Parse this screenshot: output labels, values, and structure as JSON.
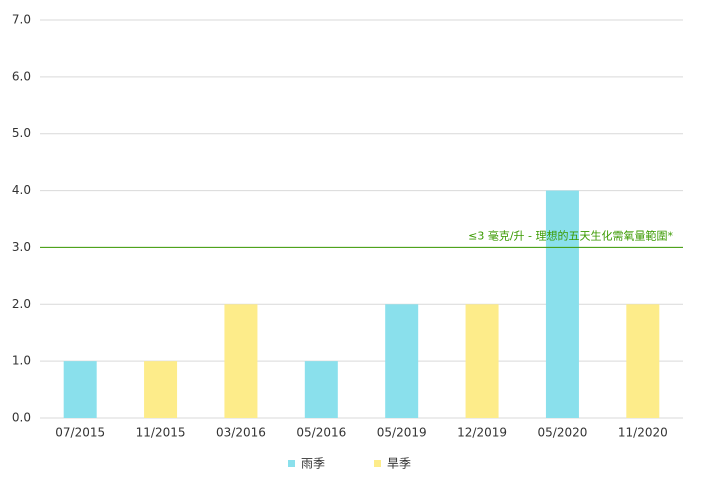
{
  "chart_data": {
    "type": "bar",
    "categories": [
      "07/2015",
      "11/2015",
      "03/2016",
      "05/2016",
      "05/2019",
      "12/2019",
      "05/2020",
      "11/2020"
    ],
    "series": [
      {
        "name": "雨季",
        "color": "#8ae0ec",
        "values": [
          1,
          null,
          null,
          1,
          2,
          null,
          4,
          null
        ]
      },
      {
        "name": "旱季",
        "color": "#fdec8a",
        "values": [
          null,
          1,
          2,
          null,
          null,
          2,
          null,
          2
        ]
      }
    ],
    "ylim": [
      0,
      7
    ],
    "yticks": [
      {
        "value": 0,
        "label": "0.0"
      },
      {
        "value": 1,
        "label": "1.0"
      },
      {
        "value": 2,
        "label": "2.0"
      },
      {
        "value": 3,
        "label": "3.0"
      },
      {
        "value": 4,
        "label": "4.0"
      },
      {
        "value": 5,
        "label": "5.0"
      },
      {
        "value": 6,
        "label": "6.0"
      },
      {
        "value": 7,
        "label": "7.0"
      }
    ],
    "grid": true,
    "reference_line": {
      "value": 3,
      "label": "≤3 毫克/升 - 理想的五天生化需氧量範圍*",
      "color": "#3a9a00"
    },
    "legend": "bottom"
  }
}
